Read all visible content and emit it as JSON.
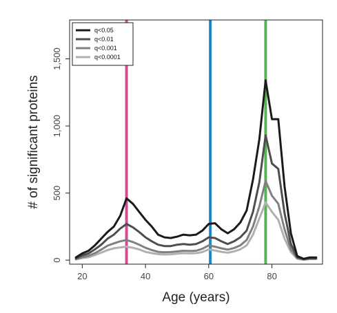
{
  "chart_data": {
    "type": "line",
    "xlabel": "Age (years)",
    "ylabel": "# of significant proteins",
    "xlim": [
      16,
      96
    ],
    "ylim": [
      -30,
      1790
    ],
    "x_ticks": [
      20,
      40,
      60,
      80
    ],
    "x_tick_labels": [
      "20",
      "40",
      "60",
      "80"
    ],
    "y_ticks": [
      0,
      500,
      1000,
      1500
    ],
    "y_tick_labels": [
      "0",
      "500",
      "1,000",
      "1,500"
    ],
    "grid": false,
    "legend_position": "top-left",
    "x": [
      18,
      20,
      22,
      24,
      26,
      28,
      30,
      32,
      34,
      36,
      38,
      40,
      42,
      44,
      46,
      48,
      50,
      52,
      54,
      56,
      58,
      60,
      62,
      64,
      66,
      68,
      70,
      72,
      74,
      76,
      78,
      80,
      82,
      84,
      86,
      88,
      90,
      92,
      94
    ],
    "series": [
      {
        "name": "q<0.05",
        "color": "#1a1a1a",
        "values": [
          20,
          50,
          70,
          110,
          160,
          210,
          250,
          330,
          460,
          420,
          360,
          300,
          250,
          190,
          170,
          165,
          175,
          190,
          185,
          190,
          220,
          270,
          275,
          230,
          200,
          230,
          280,
          370,
          600,
          900,
          1340,
          1050,
          1050,
          550,
          200,
          30,
          10,
          20,
          20
        ]
      },
      {
        "name": "q<0.01",
        "color": "#4d4d4d",
        "values": [
          12,
          35,
          50,
          80,
          115,
          160,
          190,
          235,
          270,
          245,
          210,
          170,
          140,
          115,
          105,
          105,
          115,
          120,
          115,
          120,
          140,
          170,
          165,
          140,
          120,
          140,
          170,
          220,
          360,
          580,
          930,
          720,
          680,
          350,
          120,
          20,
          8,
          15,
          15
        ]
      },
      {
        "name": "q<0.001",
        "color": "#808080",
        "values": [
          8,
          22,
          32,
          52,
          78,
          108,
          125,
          140,
          150,
          135,
          115,
          92,
          75,
          62,
          58,
          60,
          65,
          70,
          68,
          70,
          85,
          110,
          100,
          88,
          78,
          90,
          110,
          150,
          250,
          400,
          590,
          480,
          420,
          230,
          80,
          15,
          5,
          10,
          10
        ]
      },
      {
        "name": "q<0.0001",
        "color": "#b0b0b0",
        "values": [
          5,
          15,
          22,
          38,
          55,
          75,
          88,
          95,
          100,
          92,
          80,
          62,
          52,
          45,
          42,
          44,
          48,
          52,
          50,
          52,
          60,
          80,
          72,
          62,
          55,
          65,
          80,
          110,
          190,
          310,
          430,
          360,
          300,
          160,
          60,
          10,
          3,
          8,
          8
        ]
      }
    ],
    "vertical_lines": [
      {
        "x": 34,
        "color": "#d14b93"
      },
      {
        "x": 60.5,
        "color": "#1e88c7"
      },
      {
        "x": 78,
        "color": "#55b456"
      }
    ]
  }
}
